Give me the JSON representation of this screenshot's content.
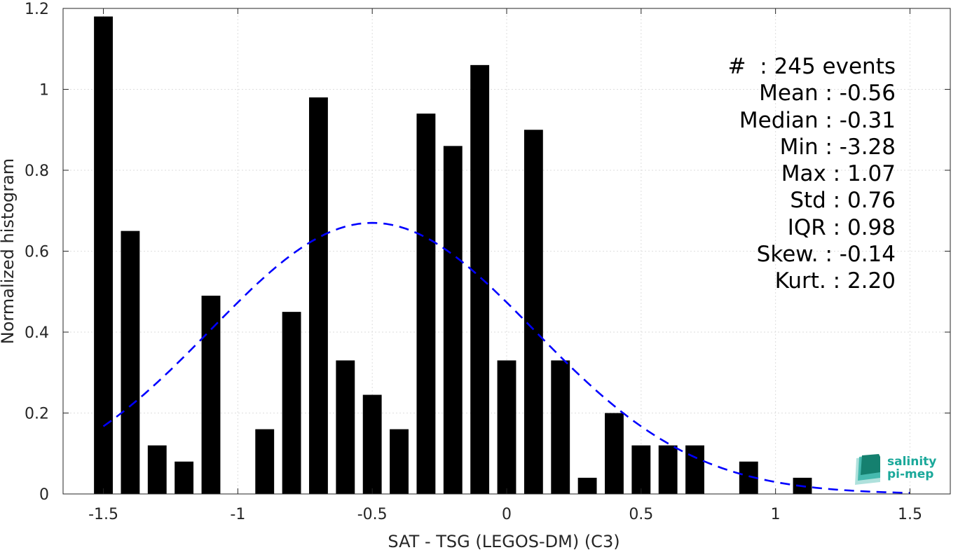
{
  "chart_data": {
    "type": "bar",
    "xlabel": "SAT - TSG (LEGOS-DM) (C3)",
    "ylabel": "Normalized histogram",
    "xlim": [
      -1.65,
      1.65
    ],
    "ylim": [
      0,
      1.2
    ],
    "xticks": [
      "-1.5",
      "-1",
      "-0.5",
      "0",
      "0.5",
      "1",
      "1.5"
    ],
    "yticks": [
      "0",
      "0.2",
      "0.4",
      "0.6",
      "0.8",
      "1",
      "1.2"
    ],
    "grid": true,
    "bins": [
      -1.5,
      -1.4,
      -1.3,
      -1.2,
      -1.1,
      -1.0,
      -0.9,
      -0.8,
      -0.7,
      -0.6,
      -0.5,
      -0.4,
      -0.3,
      -0.2,
      -0.1,
      0.0,
      0.1,
      0.2,
      0.3,
      0.4,
      0.5,
      0.6,
      0.7,
      0.8,
      0.9,
      1.0,
      1.1
    ],
    "values": [
      1.18,
      0.65,
      0.12,
      0.08,
      0.49,
      0.0,
      0.16,
      0.45,
      0.98,
      0.33,
      0.245,
      0.16,
      0.94,
      0.86,
      1.06,
      0.33,
      0.9,
      0.33,
      0.04,
      0.2,
      0.12,
      0.12,
      0.12,
      0.0,
      0.08,
      0.0,
      0.04
    ],
    "bar_color": "#000000",
    "fit": {
      "type": "normal",
      "mean": -0.5,
      "std": 0.6,
      "peak": 0.67,
      "color": "#0000ff",
      "x_range": [
        -1.5,
        1.5
      ]
    },
    "stats": [
      {
        "label": "#  : 245 events"
      },
      {
        "label": "Mean : -0.56"
      },
      {
        "label": "Median : -0.31"
      },
      {
        "label": "Min : -3.28"
      },
      {
        "label": "Max : 1.07"
      },
      {
        "label": "Std : 0.76"
      },
      {
        "label": "IQR : 0.98"
      },
      {
        "label": "Skew. : -0.14"
      },
      {
        "label": "Kurt. : 2.20"
      }
    ]
  },
  "logo": {
    "line1": "salinity",
    "line2": "pi-mep",
    "color": "#1aa89a"
  }
}
